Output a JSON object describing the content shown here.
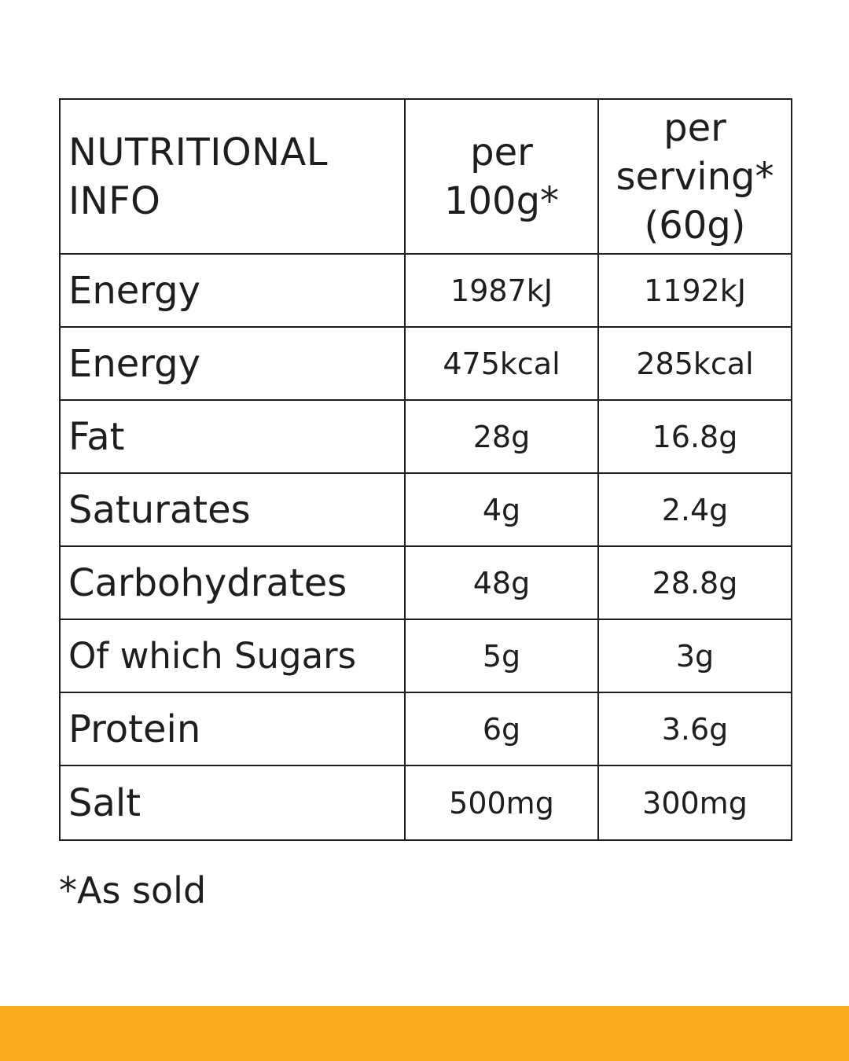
{
  "table": {
    "header": {
      "label_lines": [
        "NUTRITIONAL",
        "INFO"
      ],
      "col_100g_lines": [
        "per",
        "100g*"
      ],
      "col_serving_lines": [
        "per",
        "serving*",
        "(60g)"
      ]
    },
    "rows": [
      {
        "label": "Energy",
        "per_100g": "1987kJ",
        "per_serving": "1192kJ"
      },
      {
        "label": "Energy",
        "per_100g": "475kcal",
        "per_serving": "285kcal"
      },
      {
        "label": "Fat",
        "per_100g": "28g",
        "per_serving": "16.8g"
      },
      {
        "label": "Saturates",
        "per_100g": "4g",
        "per_serving": "2.4g"
      },
      {
        "label": "Carbohydrates",
        "per_100g": "48g",
        "per_serving": "28.8g"
      },
      {
        "label": "Of which Sugars",
        "per_100g": "5g",
        "per_serving": "3g"
      },
      {
        "label": "Protein",
        "per_100g": "6g",
        "per_serving": "3.6g"
      },
      {
        "label": "Salt",
        "per_100g": "500mg",
        "per_serving": "300mg"
      }
    ]
  },
  "footnote": "*As sold",
  "colors": {
    "text": "#1e1e1e",
    "border": "#1e1e1e",
    "background": "#ffffff",
    "accent_band": "#f8ad1c"
  }
}
